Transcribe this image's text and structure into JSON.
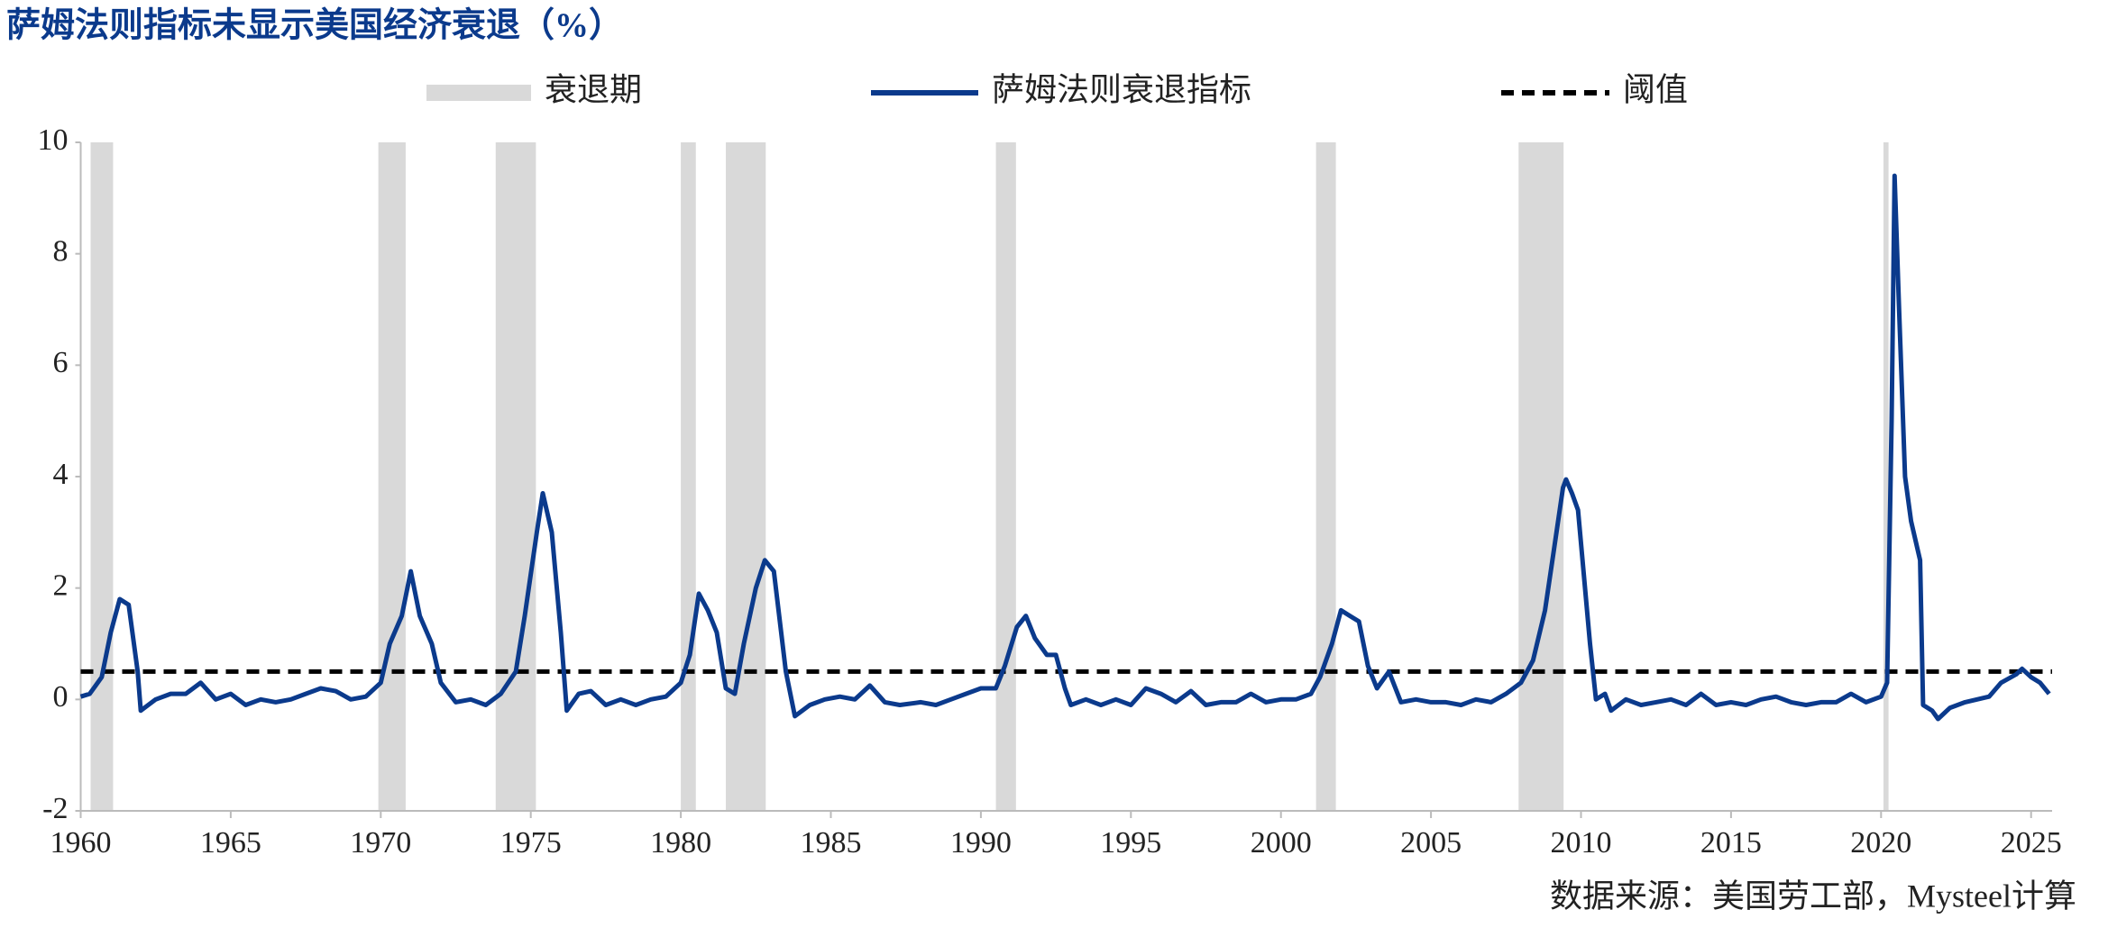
{
  "chart_data": {
    "type": "line",
    "title": "萨姆法则指标未显示美国经济衰退（%）",
    "source": "数据来源：美国劳工部，Mysteel计算",
    "xlim": [
      1960,
      2025.7
    ],
    "xticks": [
      1960,
      1965,
      1970,
      1975,
      1980,
      1985,
      1990,
      1995,
      2000,
      2005,
      2010,
      2015,
      2020,
      2025
    ],
    "ylim": [
      -2,
      10
    ],
    "yticks": [
      -2,
      0,
      2,
      4,
      6,
      8,
      10
    ],
    "recessions": {
      "name": "衰退期",
      "color": "#d9d9d9",
      "periods": [
        [
          1960.33,
          1961.08
        ],
        [
          1969.92,
          1970.83
        ],
        [
          1973.83,
          1975.17
        ],
        [
          1980.0,
          1980.5
        ],
        [
          1981.5,
          1982.83
        ],
        [
          1990.5,
          1991.17
        ],
        [
          2001.17,
          2001.83
        ],
        [
          2007.92,
          2009.42
        ],
        [
          2020.08,
          2020.25
        ]
      ]
    },
    "threshold": {
      "name": "阈值",
      "color": "#000000",
      "value": 0.5
    },
    "x": [
      1960.0,
      1960.3,
      1960.7,
      1961.0,
      1961.3,
      1961.6,
      1961.9,
      1962.0,
      1962.5,
      1963.0,
      1963.5,
      1964.0,
      1964.5,
      1965.0,
      1965.5,
      1966.0,
      1966.5,
      1967.0,
      1967.5,
      1968.0,
      1968.5,
      1969.0,
      1969.5,
      1970.0,
      1970.3,
      1970.7,
      1971.0,
      1971.3,
      1971.7,
      1972.0,
      1972.5,
      1973.0,
      1973.5,
      1974.0,
      1974.5,
      1974.8,
      1975.2,
      1975.4,
      1975.7,
      1976.0,
      1976.2,
      1976.6,
      1977.0,
      1977.5,
      1978.0,
      1978.5,
      1979.0,
      1979.5,
      1980.0,
      1980.3,
      1980.6,
      1980.9,
      1981.2,
      1981.5,
      1981.8,
      1982.1,
      1982.5,
      1982.8,
      1983.1,
      1983.5,
      1983.8,
      1984.3,
      1984.8,
      1985.3,
      1985.8,
      1986.3,
      1986.8,
      1987.3,
      1988.0,
      1988.5,
      1989.0,
      1989.5,
      1990.0,
      1990.5,
      1990.8,
      1991.2,
      1991.5,
      1991.8,
      1992.2,
      1992.5,
      1992.8,
      1993.0,
      1993.5,
      1994.0,
      1994.5,
      1995.0,
      1995.5,
      1996.0,
      1996.5,
      1997.0,
      1997.5,
      1998.0,
      1998.5,
      1999.0,
      1999.5,
      2000.0,
      2000.5,
      2001.0,
      2001.3,
      2001.7,
      2002.0,
      2002.3,
      2002.6,
      2002.9,
      2003.2,
      2003.6,
      2004.0,
      2004.5,
      2005.0,
      2005.5,
      2006.0,
      2006.5,
      2007.0,
      2007.5,
      2008.0,
      2008.4,
      2008.8,
      2009.1,
      2009.4,
      2009.5,
      2009.7,
      2009.9,
      2010.3,
      2010.5,
      2010.8,
      2011.0,
      2011.5,
      2012.0,
      2012.5,
      2013.0,
      2013.5,
      2014.0,
      2014.5,
      2015.0,
      2015.5,
      2016.0,
      2016.5,
      2017.0,
      2017.5,
      2018.0,
      2018.5,
      2019.0,
      2019.5,
      2020.0,
      2020.2,
      2020.35,
      2020.45,
      2020.6,
      2020.8,
      2021.0,
      2021.3,
      2021.4,
      2021.7,
      2021.9,
      2022.3,
      2022.8,
      2023.2,
      2023.6,
      2024.0,
      2024.5,
      2024.7,
      2025.0,
      2025.3,
      2025.6
    ],
    "series": [
      {
        "name": "萨姆法则衰退指标",
        "color": "#0b3a8c",
        "values": [
          0.05,
          0.1,
          0.4,
          1.2,
          1.8,
          1.7,
          0.5,
          -0.2,
          0,
          0.1,
          0.1,
          0.3,
          0,
          0.1,
          -0.1,
          0,
          -0.05,
          0,
          0.1,
          0.2,
          0.15,
          0,
          0.05,
          0.3,
          1.0,
          1.5,
          2.3,
          1.5,
          1.0,
          0.3,
          -0.05,
          0,
          -0.1,
          0.1,
          0.5,
          1.5,
          3.0,
          3.7,
          3.0,
          1.2,
          -0.2,
          0.1,
          0.15,
          -0.1,
          0,
          -0.1,
          0,
          0.05,
          0.3,
          0.8,
          1.9,
          1.6,
          1.2,
          0.2,
          0.1,
          1.0,
          2.0,
          2.5,
          2.3,
          0.5,
          -0.3,
          -0.1,
          0,
          0.05,
          0,
          0.25,
          -0.05,
          -0.1,
          -0.05,
          -0.1,
          0,
          0.1,
          0.2,
          0.2,
          0.6,
          1.3,
          1.5,
          1.1,
          0.8,
          0.8,
          0.2,
          -0.1,
          0,
          -0.1,
          0,
          -0.1,
          0.2,
          0.1,
          -0.05,
          0.15,
          -0.1,
          -0.05,
          -0.05,
          0.1,
          -0.05,
          0,
          0,
          0.1,
          0.4,
          1.0,
          1.6,
          1.5,
          1.4,
          0.6,
          0.2,
          0.5,
          -0.05,
          0,
          -0.05,
          -0.05,
          -0.1,
          0,
          -0.05,
          0.1,
          0.3,
          0.7,
          1.6,
          2.7,
          3.8,
          3.95,
          3.7,
          3.4,
          1.0,
          0,
          0.1,
          -0.2,
          0,
          -0.1,
          -0.05,
          0,
          -0.1,
          0.1,
          -0.1,
          -0.05,
          -0.1,
          0,
          0.05,
          -0.05,
          -0.1,
          -0.05,
          -0.05,
          0.1,
          -0.05,
          0.05,
          0.3,
          5.0,
          9.4,
          7.0,
          4.0,
          3.2,
          2.5,
          -0.1,
          -0.2,
          -0.35,
          -0.15,
          -0.05,
          0,
          0.05,
          0.3,
          0.45,
          0.55,
          0.4,
          0.3,
          0.1
        ]
      }
    ]
  }
}
